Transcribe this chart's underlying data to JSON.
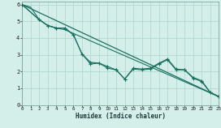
{
  "xlabel": "Humidex (Indice chaleur)",
  "xlim": [
    0,
    23
  ],
  "ylim": [
    0,
    6.2
  ],
  "xticks": [
    0,
    1,
    2,
    3,
    4,
    5,
    6,
    7,
    8,
    9,
    10,
    11,
    12,
    13,
    14,
    15,
    16,
    17,
    18,
    19,
    20,
    21,
    22,
    23
  ],
  "yticks": [
    0,
    1,
    2,
    3,
    4,
    5,
    6
  ],
  "grid_color": "#aed4cc",
  "bg_color": "#d4eeea",
  "line_color": "#1a7060",
  "line_straight": {
    "x": [
      0,
      23
    ],
    "y": [
      6.0,
      0.5
    ]
  },
  "line_upper": {
    "x": [
      0,
      1,
      2,
      3,
      4,
      5,
      23
    ],
    "y": [
      6.0,
      5.85,
      5.1,
      4.75,
      4.6,
      4.5,
      0.5
    ]
  },
  "line_zigzag1": {
    "x": [
      0,
      2,
      3,
      4,
      5,
      6,
      7,
      8,
      9,
      10,
      11,
      12,
      13,
      14,
      15,
      16,
      17,
      18,
      19,
      20,
      21,
      22,
      23
    ],
    "y": [
      6.0,
      5.1,
      4.75,
      4.6,
      4.6,
      4.2,
      3.05,
      2.45,
      2.5,
      2.2,
      2.1,
      1.55,
      2.15,
      2.1,
      2.15,
      2.45,
      2.7,
      2.1,
      2.1,
      1.6,
      1.4,
      0.75,
      0.5
    ]
  },
  "line_zigzag2": {
    "x": [
      0,
      2,
      3,
      4,
      5,
      6,
      7,
      8,
      9,
      10,
      11,
      12,
      13,
      14,
      15,
      16,
      17,
      18,
      19,
      20,
      21,
      22,
      23
    ],
    "y": [
      6.0,
      5.1,
      4.75,
      4.6,
      4.6,
      4.2,
      3.05,
      2.55,
      2.5,
      2.3,
      2.1,
      1.55,
      2.2,
      2.15,
      2.2,
      2.5,
      2.75,
      2.15,
      2.1,
      1.65,
      1.45,
      0.75,
      0.5
    ]
  }
}
